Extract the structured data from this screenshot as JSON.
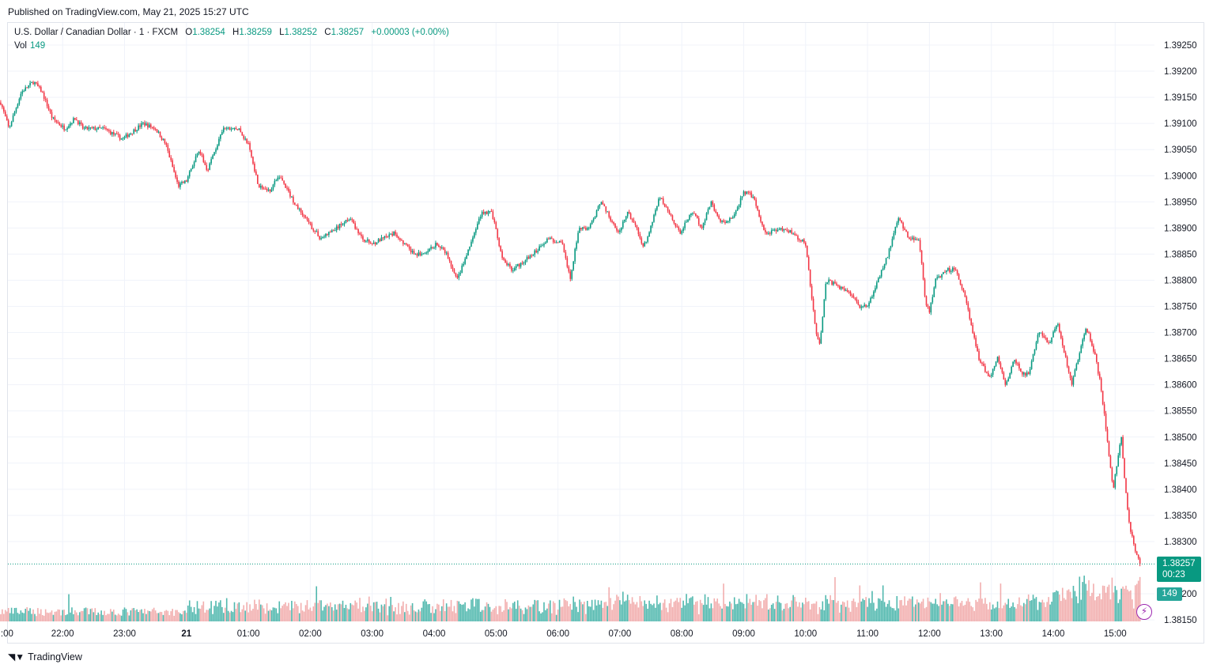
{
  "header": {
    "published": "Published on TradingView.com, May 21, 2025 15:27 UTC"
  },
  "legend": {
    "symbol": "U.S. Dollar / Canadian Dollar · 1 · FXCM",
    "open_label": "O",
    "open": "1.38254",
    "high_label": "H",
    "high": "1.38259",
    "low_label": "L",
    "low": "1.38252",
    "close_label": "C",
    "close": "1.38257",
    "change": "+0.00003 (+0.00%)"
  },
  "volume": {
    "label": "Vol",
    "value": "149"
  },
  "last_price": {
    "price": "1.38257",
    "countdown": "00:23",
    "volume": "149"
  },
  "footer": {
    "brand": "TradingView"
  },
  "icons": {
    "brand_logo": "tradingview-logo-icon",
    "alert": "lightning-icon"
  },
  "colors": {
    "up": "#089981",
    "down": "#f23645",
    "vol_up": "#26a69a",
    "vol_down": "#ef9a9a",
    "grid": "#f0f3fa"
  },
  "chart_data": {
    "type": "candlestick",
    "price_axis": {
      "min": 1.3815,
      "max": 1.3925,
      "ticks": [
        "1.39250",
        "1.39200",
        "1.39150",
        "1.39100",
        "1.39050",
        "1.39000",
        "1.38950",
        "1.38900",
        "1.38850",
        "1.38800",
        "1.38750",
        "1.38700",
        "1.38650",
        "1.38600",
        "1.38550",
        "1.38500",
        "1.38450",
        "1.38400",
        "1.38350",
        "1.38300",
        "1.38200",
        "1.38150"
      ]
    },
    "time_axis": {
      "ticks": [
        {
          "label": ":00",
          "minute": -120
        },
        {
          "label": "22:00",
          "minute": -60
        },
        {
          "label": "23:00",
          "minute": 0
        },
        {
          "label": "21",
          "minute": 60
        },
        {
          "label": "01:00",
          "minute": 120
        },
        {
          "label": "02:00",
          "minute": 180
        },
        {
          "label": "03:00",
          "minute": 240
        },
        {
          "label": "04:00",
          "minute": 300
        },
        {
          "label": "05:00",
          "minute": 360
        },
        {
          "label": "06:00",
          "minute": 420
        },
        {
          "label": "07:00",
          "minute": 480
        },
        {
          "label": "08:00",
          "minute": 540
        },
        {
          "label": "09:00",
          "minute": 600
        },
        {
          "label": "10:00",
          "minute": 660
        },
        {
          "label": "11:00",
          "minute": 720
        },
        {
          "label": "12:00",
          "minute": 780
        },
        {
          "label": "13:00",
          "minute": 840
        },
        {
          "label": "14:00",
          "minute": 900
        },
        {
          "label": "15:00",
          "minute": 960
        }
      ]
    },
    "close_path": [
      [
        -120,
        1.3914
      ],
      [
        -112,
        1.3909
      ],
      [
        -100,
        1.3916
      ],
      [
        -88,
        1.3918
      ],
      [
        -80,
        1.3916
      ],
      [
        -70,
        1.3911
      ],
      [
        -58,
        1.3909
      ],
      [
        -48,
        1.3911
      ],
      [
        -40,
        1.3909
      ],
      [
        -20,
        1.3909
      ],
      [
        -2,
        1.3907
      ],
      [
        18,
        1.391
      ],
      [
        30,
        1.3909
      ],
      [
        40,
        1.3906
      ],
      [
        52,
        1.3898
      ],
      [
        60,
        1.3899
      ],
      [
        72,
        1.3905
      ],
      [
        80,
        1.3901
      ],
      [
        96,
        1.3909
      ],
      [
        110,
        1.3909
      ],
      [
        120,
        1.3906
      ],
      [
        130,
        1.3898
      ],
      [
        140,
        1.3897
      ],
      [
        150,
        1.39
      ],
      [
        164,
        1.3895
      ],
      [
        178,
        1.3891
      ],
      [
        190,
        1.3888
      ],
      [
        206,
        1.389
      ],
      [
        218,
        1.3892
      ],
      [
        230,
        1.3888
      ],
      [
        240,
        1.3887
      ],
      [
        262,
        1.3889
      ],
      [
        280,
        1.3885
      ],
      [
        292,
        1.3885
      ],
      [
        302,
        1.3887
      ],
      [
        312,
        1.3885
      ],
      [
        322,
        1.388
      ],
      [
        332,
        1.3885
      ],
      [
        346,
        1.3893
      ],
      [
        356,
        1.3893
      ],
      [
        366,
        1.3884
      ],
      [
        376,
        1.3882
      ],
      [
        396,
        1.3885
      ],
      [
        410,
        1.3888
      ],
      [
        424,
        1.3887
      ],
      [
        432,
        1.388
      ],
      [
        440,
        1.389
      ],
      [
        450,
        1.389
      ],
      [
        462,
        1.3895
      ],
      [
        478,
        1.3889
      ],
      [
        488,
        1.3893
      ],
      [
        496,
        1.389
      ],
      [
        502,
        1.3886
      ],
      [
        508,
        1.3889
      ],
      [
        518,
        1.3896
      ],
      [
        528,
        1.3893
      ],
      [
        538,
        1.3889
      ],
      [
        550,
        1.3893
      ],
      [
        560,
        1.389
      ],
      [
        568,
        1.3895
      ],
      [
        578,
        1.3891
      ],
      [
        590,
        1.3892
      ],
      [
        600,
        1.3897
      ],
      [
        610,
        1.3896
      ],
      [
        620,
        1.3889
      ],
      [
        640,
        1.389
      ],
      [
        660,
        1.3887
      ],
      [
        664,
        1.388
      ],
      [
        670,
        1.387
      ],
      [
        674,
        1.3868
      ],
      [
        680,
        1.388
      ],
      [
        690,
        1.3879
      ],
      [
        700,
        1.3878
      ],
      [
        712,
        1.3875
      ],
      [
        720,
        1.3875
      ],
      [
        730,
        1.388
      ],
      [
        740,
        1.3885
      ],
      [
        750,
        1.3892
      ],
      [
        760,
        1.3888
      ],
      [
        770,
        1.3888
      ],
      [
        776,
        1.3876
      ],
      [
        780,
        1.3874
      ],
      [
        786,
        1.388
      ],
      [
        796,
        1.3882
      ],
      [
        806,
        1.3882
      ],
      [
        816,
        1.3876
      ],
      [
        822,
        1.387
      ],
      [
        828,
        1.3865
      ],
      [
        838,
        1.3861
      ],
      [
        846,
        1.3865
      ],
      [
        854,
        1.386
      ],
      [
        862,
        1.3865
      ],
      [
        870,
        1.3862
      ],
      [
        876,
        1.3862
      ],
      [
        886,
        1.387
      ],
      [
        896,
        1.3868
      ],
      [
        904,
        1.3872
      ],
      [
        912,
        1.3865
      ],
      [
        918,
        1.386
      ],
      [
        924,
        1.3865
      ],
      [
        932,
        1.3871
      ],
      [
        940,
        1.3866
      ],
      [
        946,
        1.386
      ],
      [
        952,
        1.385
      ],
      [
        958,
        1.384
      ],
      [
        962,
        1.3845
      ],
      [
        966,
        1.385
      ],
      [
        970,
        1.384
      ],
      [
        974,
        1.3833
      ],
      [
        980,
        1.3828
      ],
      [
        984,
        1.3826
      ]
    ],
    "last_price": 1.38257,
    "volume_range": [
      0,
      400
    ]
  }
}
